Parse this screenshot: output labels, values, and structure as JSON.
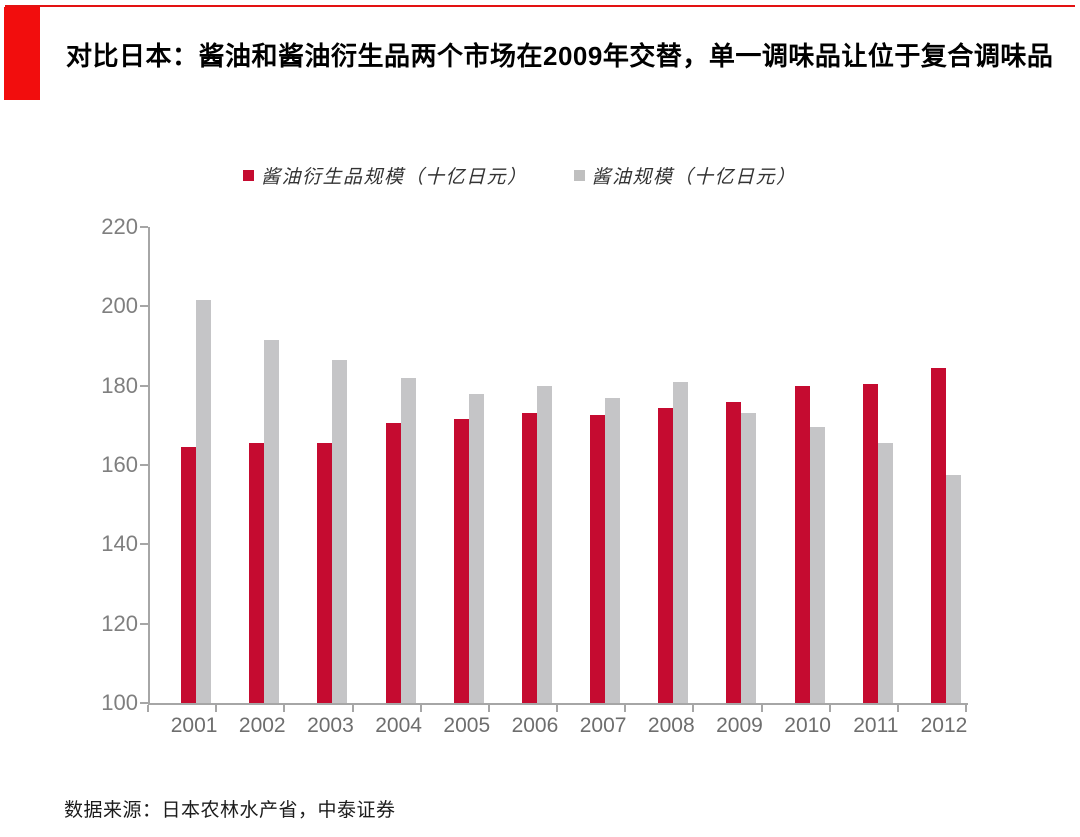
{
  "header": {
    "title": "对比日本：酱油和酱油衍生品两个市场在2009年交替，单一调味品让位于复合调味品",
    "accent_color": "#f20d0d",
    "top_line_color": "#e31212"
  },
  "chart_data": {
    "type": "bar",
    "title": "",
    "xlabel": "",
    "ylabel": "",
    "categories": [
      "2001",
      "2002",
      "2003",
      "2004",
      "2005",
      "2006",
      "2007",
      "2008",
      "2009",
      "2010",
      "2011",
      "2012"
    ],
    "series": [
      {
        "name": "酱油衍生品规模（十亿日元）",
        "color": "#c50b30",
        "values": [
          164.5,
          165.5,
          165.5,
          170.5,
          171.5,
          173,
          172.5,
          174.5,
          176,
          180,
          180.5,
          184.5
        ]
      },
      {
        "name": "酱油规模（十亿日元）",
        "color": "#c5c5c7",
        "legend_color": "#bfbfbf",
        "values": [
          201.5,
          191.5,
          186.5,
          182,
          178,
          180,
          177,
          181,
          173,
          169.5,
          165.5,
          157.5
        ]
      }
    ],
    "ylim": [
      100,
      220
    ],
    "yticks": [
      220,
      200,
      180,
      160,
      140,
      120,
      100
    ],
    "grid": false,
    "legend_position": "top",
    "axis_color": "#a6a6a6",
    "tick_label_color": "#7f7f7f"
  },
  "footer": {
    "source": "数据来源：日本农林水产省，中泰证券"
  }
}
